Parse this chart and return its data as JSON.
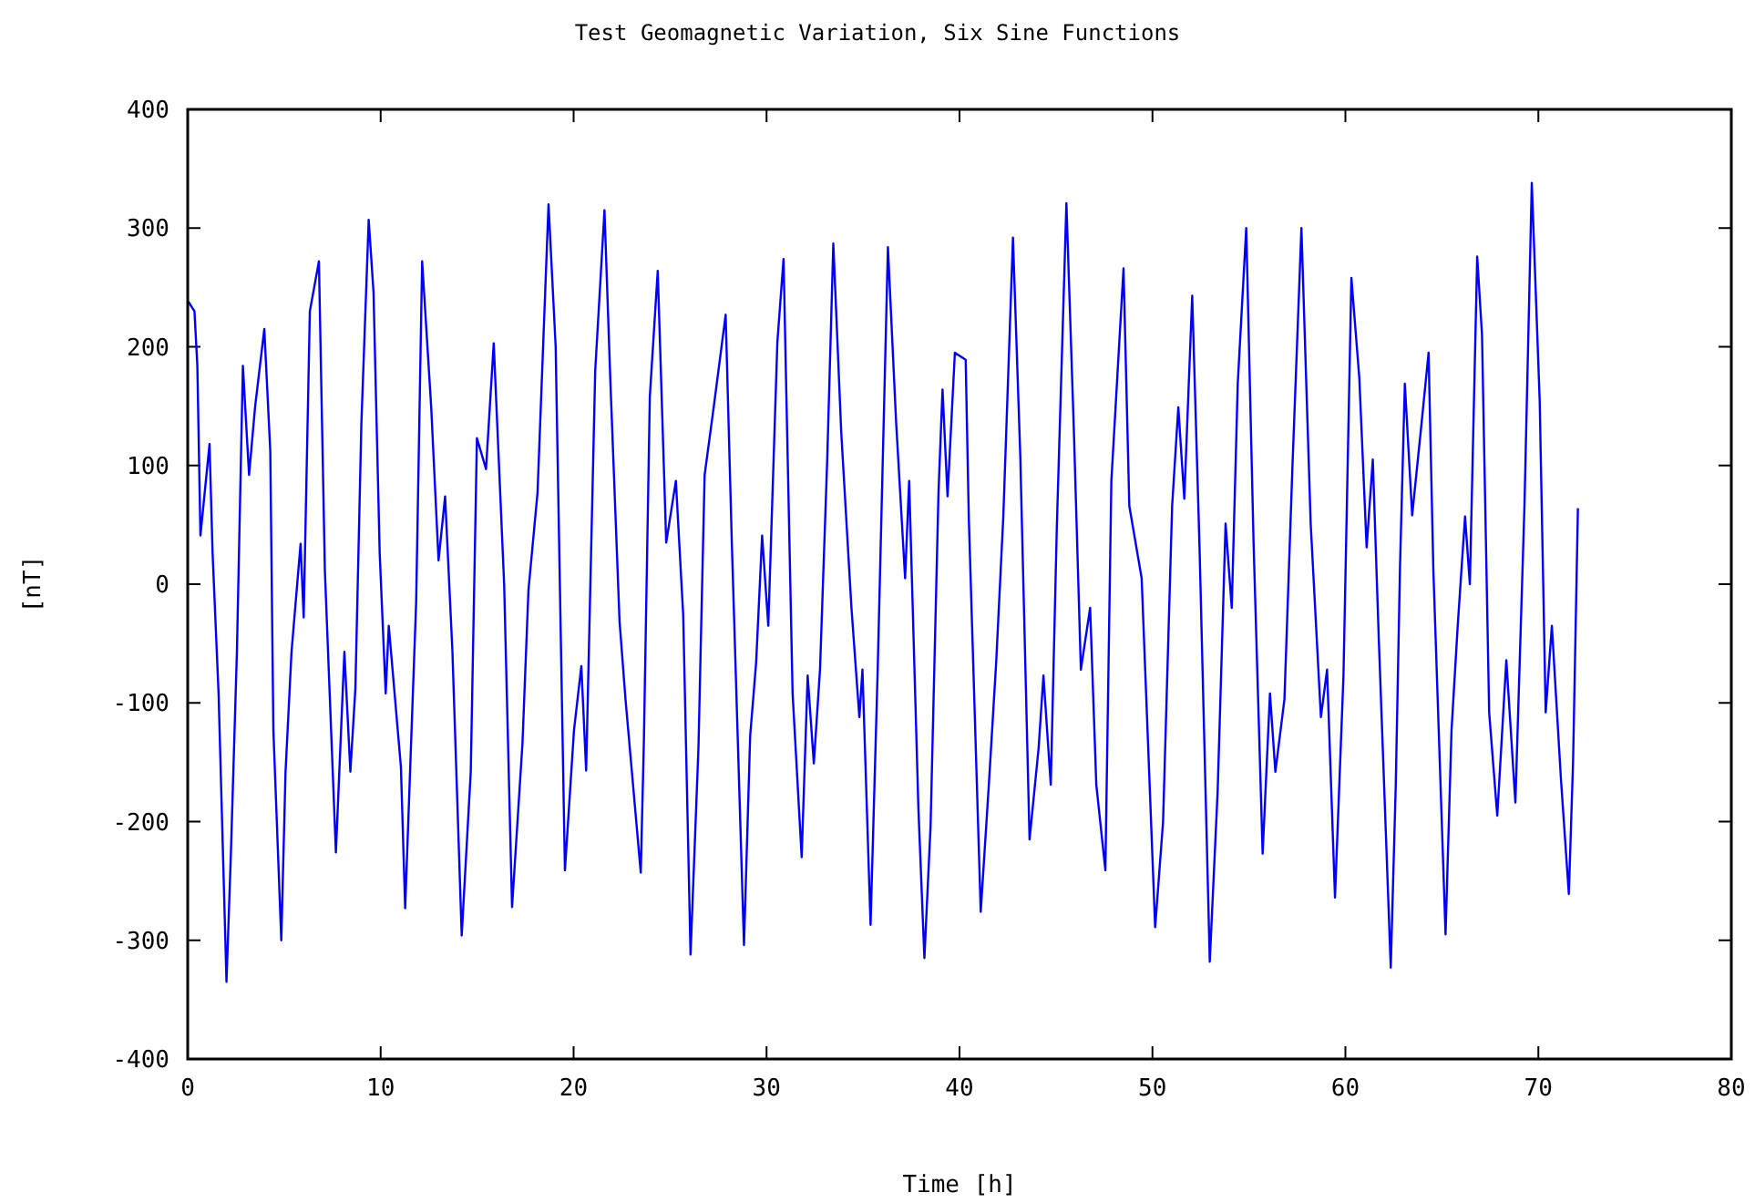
{
  "chart_data": {
    "type": "line",
    "title": "Test Geomagnetic Variation, Six Sine Functions",
    "xlabel": "Time [h]",
    "ylabel": "[nT]",
    "xlim": [
      0,
      80
    ],
    "ylim": [
      -400,
      400
    ],
    "xticks": [
      0,
      10,
      20,
      30,
      40,
      50,
      60,
      70,
      80
    ],
    "yticks": [
      -400,
      -300,
      -200,
      -100,
      0,
      100,
      200,
      300,
      400
    ],
    "marker": "none",
    "line_style": "solid",
    "series": [
      {
        "color": "#0000ff",
        "x": [
          0.03,
          0.35,
          0.5,
          0.66,
          1.13,
          1.29,
          1.6,
          2.01,
          2.24,
          2.55,
          2.86,
          3.18,
          3.49,
          3.97,
          4.28,
          4.44,
          4.85,
          5.07,
          5.38,
          5.85,
          6.01,
          6.33,
          6.8,
          7.11,
          7.68,
          8.12,
          8.43,
          8.69,
          9.0,
          9.38,
          9.63,
          9.95,
          10.26,
          10.42,
          11.05,
          11.27,
          11.84,
          12.15,
          12.62,
          13.0,
          13.34,
          13.72,
          14.2,
          14.67,
          14.99,
          15.46,
          15.86,
          16.4,
          16.81,
          17.35,
          17.66,
          18.13,
          18.7,
          19.07,
          19.55,
          20.02,
          20.4,
          20.65,
          21.12,
          21.6,
          21.91,
          22.38,
          22.69,
          23.48,
          23.64,
          23.95,
          24.36,
          24.8,
          25.3,
          25.68,
          26.06,
          26.47,
          26.79,
          27.26,
          27.88,
          28.2,
          28.83,
          29.15,
          29.46,
          29.77,
          30.09,
          30.56,
          30.88,
          31.35,
          31.82,
          32.13,
          32.45,
          32.77,
          33.14,
          33.46,
          33.87,
          34.4,
          34.81,
          34.97,
          35.39,
          35.76,
          36.29,
          36.71,
          37.18,
          37.39,
          37.87,
          38.18,
          38.5,
          38.91,
          39.12,
          39.38,
          39.76,
          40.32,
          40.48,
          41.1,
          41.52,
          41.9,
          42.27,
          42.77,
          43.15,
          43.63,
          44.1,
          44.35,
          44.73,
          45.04,
          45.54,
          45.92,
          46.29,
          46.77,
          47.09,
          47.56,
          47.87,
          48.5,
          48.8,
          49.44,
          50.14,
          50.55,
          51.02,
          51.34,
          51.65,
          52.06,
          52.44,
          52.97,
          53.38,
          53.79,
          54.11,
          54.42,
          54.86,
          55.24,
          55.71,
          56.09,
          56.37,
          56.84,
          57.25,
          57.72,
          58.2,
          58.73,
          59.05,
          59.46,
          59.9,
          60.31,
          60.72,
          61.1,
          61.42,
          61.73,
          62.35,
          62.61,
          62.83,
          63.08,
          63.46,
          63.93,
          64.31,
          64.56,
          65.19,
          65.5,
          65.82,
          66.2,
          66.45,
          66.83,
          67.08,
          67.45,
          67.87,
          68.34,
          68.81,
          69.28,
          69.66,
          70.07,
          70.38,
          70.7,
          71.17,
          71.58,
          71.8,
          72.05
        ],
        "values": [
          238,
          230,
          184,
          41,
          118,
          26,
          -92,
          -335,
          -226,
          -57,
          184,
          92,
          149,
          215,
          112,
          -123,
          -300,
          -158,
          -57,
          34,
          -28,
          230,
          272,
          11,
          -226,
          -57,
          -158,
          -88,
          135,
          307,
          246,
          26,
          -92,
          -35,
          -154,
          -273,
          -15,
          272,
          149,
          20,
          74,
          -57,
          -296,
          -158,
          123,
          97,
          203,
          0,
          -272,
          -134,
          -5,
          77,
          320,
          200,
          -241,
          -123,
          -69,
          -157,
          180,
          315,
          169,
          -31,
          -97,
          -243,
          -134,
          158,
          264,
          35,
          87,
          -26,
          -312,
          -138,
          92,
          149,
          227,
          35,
          -304,
          -128,
          -66,
          41,
          -35,
          204,
          274,
          -92,
          -230,
          -77,
          -151,
          -72,
          103,
          287,
          128,
          -20,
          -112,
          -72,
          -287,
          -72,
          284,
          138,
          5,
          87,
          -189,
          -315,
          -204,
          77,
          164,
          74,
          195,
          189,
          57,
          -276,
          -169,
          -66,
          57,
          292,
          108,
          -215,
          -138,
          -77,
          -169,
          46,
          321,
          133,
          -72,
          -20,
          -169,
          -241,
          87,
          266,
          66,
          5,
          -289,
          -200,
          66,
          149,
          72,
          243,
          31,
          -318,
          -174,
          51,
          -20,
          169,
          300,
          35,
          -227,
          -92,
          -158,
          -97,
          97,
          300,
          51,
          -112,
          -72,
          -264,
          -77,
          258,
          174,
          31,
          105,
          -46,
          -323,
          -169,
          15,
          169,
          58,
          133,
          195,
          11,
          -295,
          -123,
          -35,
          57,
          0,
          276,
          210,
          -108,
          -195,
          -64,
          -184,
          66,
          338,
          154,
          -108,
          -35,
          -164,
          -261,
          -149,
          64
        ]
      }
    ]
  }
}
